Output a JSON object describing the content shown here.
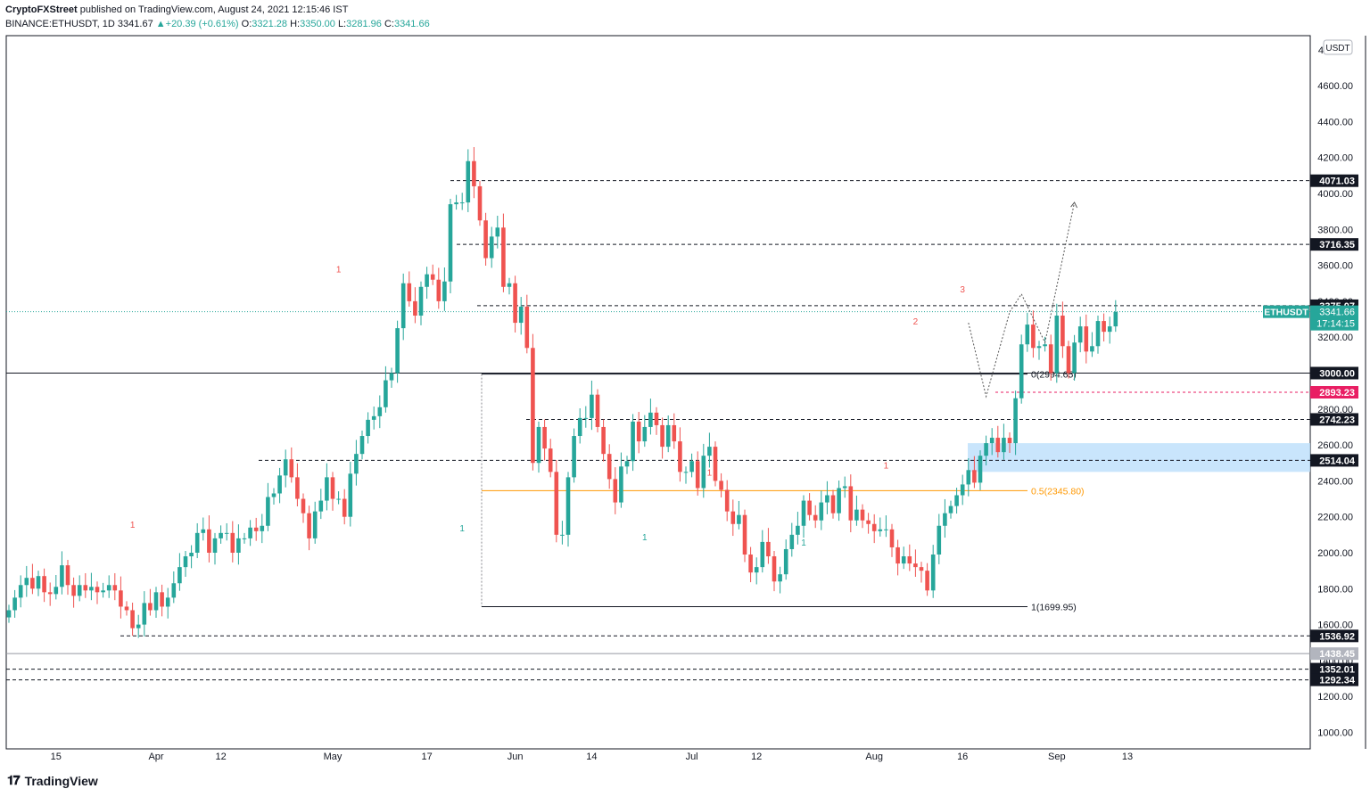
{
  "header": {
    "author": "CryptoFXStreet",
    "published": " published on TradingView.com, August 24, 2021 12:15:46 IST",
    "symbol": "BINANCE:ETHUSDT, 1D",
    "last": "3341.67",
    "change": "+20.39 (+0.61%)",
    "o_label": "O:",
    "o": "3321.28",
    "h_label": "H:",
    "h": "3350.00",
    "l_label": "L:",
    "l": "3281.96",
    "c_label": "C:",
    "c": "3341.66"
  },
  "footer": {
    "brand": "TradingView"
  },
  "colors": {
    "up": "#26a69a",
    "down": "#ef5350",
    "zone": "#bbdefb",
    "fib_mid": "#ff9800",
    "support_red": "#e91e63"
  },
  "chart_data": {
    "type": "candlestick",
    "currency": "USDT",
    "y_ticks": [
      1000,
      1200,
      1400,
      1600,
      1800,
      2000,
      2200,
      2400,
      2600,
      2800,
      3000,
      3200,
      3400,
      3600,
      3800,
      4000,
      4200,
      4400,
      4600
    ],
    "y_top_partial": "4",
    "x_ticks": [
      {
        "date": "2021-03-15",
        "label": "15"
      },
      {
        "date": "2021-04-01",
        "label": "Apr"
      },
      {
        "date": "2021-04-12",
        "label": "12"
      },
      {
        "date": "2021-05-01",
        "label": "May"
      },
      {
        "date": "2021-05-17",
        "label": "17"
      },
      {
        "date": "2021-06-01",
        "label": "Jun"
      },
      {
        "date": "2021-06-14",
        "label": "14"
      },
      {
        "date": "2021-07-01",
        "label": "Jul"
      },
      {
        "date": "2021-07-12",
        "label": "12"
      },
      {
        "date": "2021-08-01",
        "label": "Aug"
      },
      {
        "date": "2021-08-16",
        "label": "16"
      },
      {
        "date": "2021-09-01",
        "label": "Sep"
      },
      {
        "date": "2021-09-13",
        "label": "13"
      }
    ],
    "start_date": "2021-03-07",
    "closes": [
      1680,
      1750,
      1820,
      1860,
      1800,
      1870,
      1780,
      1770,
      1810,
      1930,
      1820,
      1760,
      1820,
      1790,
      1810,
      1780,
      1790,
      1820,
      1790,
      1700,
      1680,
      1580,
      1600,
      1720,
      1680,
      1780,
      1700,
      1750,
      1830,
      1920,
      1980,
      2000,
      2110,
      2130,
      2000,
      2080,
      2110,
      2110,
      2000,
      2080,
      2080,
      2140,
      2120,
      2150,
      2310,
      2330,
      2430,
      2520,
      2420,
      2300,
      2220,
      2080,
      2230,
      2290,
      2420,
      2300,
      2300,
      2200,
      2440,
      2550,
      2650,
      2740,
      2760,
      2810,
      2960,
      3000,
      3250,
      3500,
      3400,
      3320,
      3480,
      3550,
      3520,
      3400,
      3510,
      3940,
      3950,
      3950,
      4180,
      4040,
      3850,
      3640,
      3760,
      3810,
      3480,
      3500,
      3280,
      3370,
      3140,
      2500,
      2700,
      2580,
      2450,
      2100,
      2100,
      2420,
      2650,
      2750,
      2750,
      2880,
      2700,
      2550,
      2410,
      2280,
      2480,
      2510,
      2730,
      2620,
      2700,
      2780,
      2710,
      2590,
      2710,
      2620,
      2450,
      2450,
      2510,
      2360,
      2540,
      2590,
      2400,
      2350,
      2230,
      2160,
      2210,
      1990,
      1890,
      1920,
      2060,
      1980,
      1840,
      1880,
      2020,
      2100,
      2150,
      2290,
      2210,
      2180,
      2280,
      2320,
      2220,
      2360,
      2370,
      2180,
      2240,
      2180,
      2160,
      2120,
      2130,
      2130,
      2030,
      1940,
      1980,
      1940,
      1920,
      1900,
      1790,
      1990,
      2150,
      2220,
      2260,
      2320,
      2380,
      2460,
      2390,
      2540,
      2610,
      2640,
      2560,
      2640,
      2610,
      2860,
      3160,
      3270,
      3140,
      3150,
      3160,
      3000,
      3320,
      3150,
      3000,
      3170,
      3260,
      3120,
      3150,
      3290,
      3230,
      3260,
      3340
    ],
    "levels": [
      {
        "label": "4071.03",
        "price": 4071.03,
        "style": "dashed"
      },
      {
        "label": "3716.35",
        "price": 3716.35,
        "style": "dashed"
      },
      {
        "label": "3375.07",
        "price": 3375.07,
        "style": "dashed"
      },
      {
        "label": "3000.00",
        "price": 3000.0,
        "style": "solid"
      },
      {
        "label": "2893.23",
        "price": 2893.23,
        "style": "dashed-red"
      },
      {
        "label": "2742.23",
        "price": 2742.23,
        "style": "dashed"
      },
      {
        "label": "2514.04",
        "price": 2514.04,
        "style": "dashed"
      },
      {
        "label": "1536.92",
        "price": 1536.92,
        "style": "dashed"
      },
      {
        "label": "1438.45",
        "price": 1438.45,
        "style": "gray"
      },
      {
        "label": "1352.01",
        "price": 1352.01,
        "style": "dashed"
      },
      {
        "label": "1292.34",
        "price": 1292.34,
        "style": "dashed"
      }
    ],
    "current": {
      "symbol": "ETHUSDT",
      "price_label": "3341.66",
      "countdown": "17:14:15",
      "price": 3341.66
    },
    "fib": [
      {
        "label": "0(2994.65)",
        "price": 2994.65
      },
      {
        "label": "0.5(2345.80)",
        "price": 2345.8
      },
      {
        "label": "1(1699.95)",
        "price": 1699.95
      }
    ],
    "demand_zone": [
      2450,
      2610
    ],
    "sequential": [
      {
        "label": "1",
        "date": "2021-03-28",
        "price": 2140,
        "color": "red"
      },
      {
        "label": "1",
        "date": "2021-05-02",
        "price": 3560,
        "color": "red"
      },
      {
        "label": "1",
        "date": "2021-05-23",
        "price": 2120,
        "color": "green"
      },
      {
        "label": "1",
        "date": "2021-06-23",
        "price": 2070,
        "color": "green"
      },
      {
        "label": "1",
        "date": "2021-07-04",
        "price": 2430,
        "color": "red"
      },
      {
        "label": "1",
        "date": "2021-07-20",
        "price": 2040,
        "color": "green"
      },
      {
        "label": "1",
        "date": "2021-08-03",
        "price": 2470,
        "color": "red"
      },
      {
        "label": "2",
        "date": "2021-08-08",
        "price": 3270,
        "color": "red"
      },
      {
        "label": "3",
        "date": "2021-08-16",
        "price": 3450,
        "color": "red"
      }
    ],
    "forecast_path": [
      {
        "date": "2021-08-24",
        "price": 3341
      },
      {
        "date": "2021-08-26",
        "price": 3440
      },
      {
        "date": "2021-08-30",
        "price": 3170
      },
      {
        "date": "2021-09-04",
        "price": 3950
      }
    ],
    "pullback_path": [
      {
        "date": "2021-08-17",
        "price": 3280
      },
      {
        "date": "2021-08-20",
        "price": 2870
      },
      {
        "date": "2021-08-24",
        "price": 3340
      }
    ],
    "ylim": [
      900,
      4900
    ],
    "xlim": [
      "2021-03-07",
      "2021-09-27"
    ]
  }
}
